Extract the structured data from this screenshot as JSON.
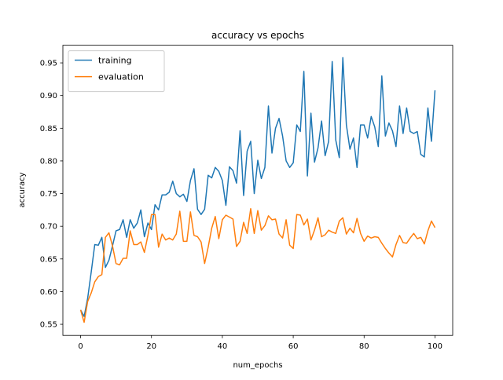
{
  "chart_data": {
    "type": "line",
    "title": "accuracy vs epochs",
    "xlabel": "num_epochs",
    "ylabel": "accuracy",
    "x": [
      0,
      1,
      2,
      3,
      4,
      5,
      6,
      7,
      8,
      9,
      10,
      11,
      12,
      13,
      14,
      15,
      16,
      17,
      18,
      19,
      20,
      21,
      22,
      23,
      24,
      25,
      26,
      27,
      28,
      29,
      30,
      31,
      32,
      33,
      34,
      35,
      36,
      37,
      38,
      39,
      40,
      41,
      42,
      43,
      44,
      45,
      46,
      47,
      48,
      49,
      50,
      51,
      52,
      53,
      54,
      55,
      56,
      57,
      58,
      59,
      60,
      61,
      62,
      63,
      64,
      65,
      66,
      67,
      68,
      69,
      70,
      71,
      72,
      73,
      74,
      75,
      76,
      77,
      78,
      79,
      80,
      81,
      82,
      83,
      84,
      85,
      86,
      87,
      88,
      89,
      90,
      91,
      92,
      93,
      94,
      95,
      96,
      97,
      98,
      99,
      100
    ],
    "series": [
      {
        "name": "training",
        "color": "#1f77b4",
        "values": [
          0.572,
          0.562,
          0.59,
          0.63,
          0.672,
          0.671,
          0.683,
          0.637,
          0.648,
          0.67,
          0.693,
          0.695,
          0.71,
          0.683,
          0.71,
          0.697,
          0.705,
          0.725,
          0.684,
          0.705,
          0.695,
          0.733,
          0.725,
          0.748,
          0.748,
          0.752,
          0.769,
          0.75,
          0.745,
          0.749,
          0.738,
          0.77,
          0.788,
          0.726,
          0.718,
          0.726,
          0.778,
          0.774,
          0.79,
          0.784,
          0.77,
          0.732,
          0.791,
          0.785,
          0.766,
          0.846,
          0.747,
          0.815,
          0.83,
          0.75,
          0.801,
          0.773,
          0.79,
          0.884,
          0.812,
          0.85,
          0.865,
          0.838,
          0.8,
          0.79,
          0.797,
          0.855,
          0.845,
          0.937,
          0.777,
          0.873,
          0.798,
          0.82,
          0.861,
          0.808,
          0.83,
          0.952,
          0.832,
          0.805,
          0.958,
          0.855,
          0.818,
          0.835,
          0.79,
          0.855,
          0.855,
          0.835,
          0.868,
          0.852,
          0.822,
          0.93,
          0.838,
          0.858,
          0.846,
          0.822,
          0.884,
          0.842,
          0.881,
          0.845,
          0.842,
          0.845,
          0.81,
          0.806,
          0.881,
          0.83,
          0.908
        ]
      },
      {
        "name": "evaluation",
        "color": "#ff7f0e",
        "values": [
          0.572,
          0.553,
          0.585,
          0.598,
          0.615,
          0.623,
          0.626,
          0.683,
          0.69,
          0.67,
          0.643,
          0.641,
          0.651,
          0.651,
          0.693,
          0.672,
          0.672,
          0.676,
          0.66,
          0.686,
          0.718,
          0.718,
          0.668,
          0.688,
          0.679,
          0.682,
          0.679,
          0.688,
          0.723,
          0.677,
          0.677,
          0.722,
          0.686,
          0.684,
          0.676,
          0.643,
          0.668,
          0.697,
          0.715,
          0.681,
          0.71,
          0.717,
          0.714,
          0.711,
          0.669,
          0.677,
          0.706,
          0.689,
          0.727,
          0.689,
          0.724,
          0.694,
          0.701,
          0.716,
          0.71,
          0.711,
          0.688,
          0.682,
          0.71,
          0.671,
          0.666,
          0.718,
          0.717,
          0.702,
          0.711,
          0.679,
          0.694,
          0.713,
          0.684,
          0.687,
          0.694,
          0.691,
          0.689,
          0.708,
          0.713,
          0.688,
          0.697,
          0.69,
          0.712,
          0.689,
          0.677,
          0.685,
          0.682,
          0.684,
          0.683,
          0.674,
          0.666,
          0.659,
          0.653,
          0.672,
          0.686,
          0.675,
          0.674,
          0.682,
          0.689,
          0.681,
          0.683,
          0.673,
          0.693,
          0.708,
          0.698
        ]
      }
    ],
    "xlim": [
      -5,
      105
    ],
    "ylim": [
      0.533,
      0.977
    ],
    "xticks": [
      0,
      20,
      40,
      60,
      80,
      100
    ],
    "yticks": [
      0.55,
      {
        "value": 0.6,
        "label": "0.60"
      },
      0.65,
      {
        "value": 0.7,
        "label": "0.70"
      },
      0.75,
      {
        "value": 0.8,
        "label": "0.80"
      },
      0.85,
      {
        "value": 0.9,
        "label": "0.90"
      },
      0.95
    ],
    "legend": "upper left",
    "grid": false
  }
}
